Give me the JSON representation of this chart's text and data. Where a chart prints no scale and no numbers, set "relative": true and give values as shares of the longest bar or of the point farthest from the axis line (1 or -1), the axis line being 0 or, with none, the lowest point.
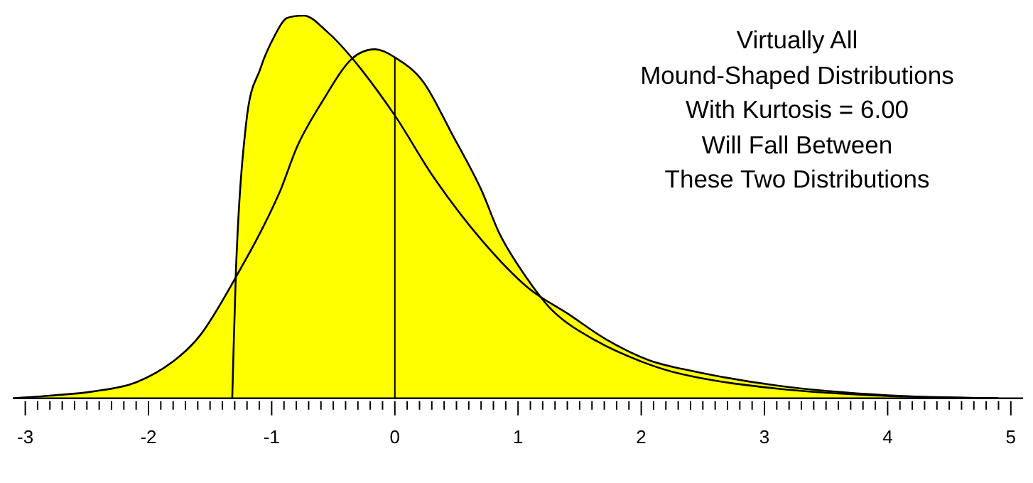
{
  "chart_data": {
    "type": "area",
    "relative": true,
    "annotations": [
      "Virtually  All\nMound-Shaped Distributions\nWith Kurtosis = 6.00\nWill Fall Between\nThese Two Distributions"
    ],
    "xlim": [
      -3.1,
      5.1
    ],
    "xticks": [
      -3,
      {
        "value": -2.9,
        "label": null
      },
      {
        "value": -2.8,
        "label": null
      },
      {
        "value": -2.7,
        "label": null
      },
      {
        "value": -2.6,
        "label": null
      },
      {
        "value": -2.5,
        "label": null
      },
      {
        "value": -2.4,
        "label": null
      },
      {
        "value": -2.3,
        "label": null
      },
      {
        "value": -2.2,
        "label": null
      },
      {
        "value": -2.1,
        "label": null
      },
      -2,
      {
        "value": -1.9,
        "label": null
      },
      {
        "value": -1.8,
        "label": null
      },
      {
        "value": -1.7,
        "label": null
      },
      {
        "value": -1.6,
        "label": null
      },
      {
        "value": -1.5,
        "label": null
      },
      {
        "value": -1.4,
        "label": null
      },
      {
        "value": -1.3,
        "label": null
      },
      {
        "value": -1.2,
        "label": null
      },
      {
        "value": -1.1,
        "label": null
      },
      -1,
      {
        "value": -0.9,
        "label": null
      },
      {
        "value": -0.8,
        "label": null
      },
      {
        "value": -0.7,
        "label": null
      },
      {
        "value": -0.6,
        "label": null
      },
      {
        "value": -0.5,
        "label": null
      },
      {
        "value": -0.4,
        "label": null
      },
      {
        "value": -0.3,
        "label": null
      },
      {
        "value": -0.2,
        "label": null
      },
      {
        "value": -0.1,
        "label": null
      },
      0,
      {
        "value": 0.1,
        "label": null
      },
      {
        "value": 0.2,
        "label": null
      },
      {
        "value": 0.3,
        "label": null
      },
      {
        "value": 0.4,
        "label": null
      },
      {
        "value": 0.5,
        "label": null
      },
      {
        "value": 0.6,
        "label": null
      },
      {
        "value": 0.7,
        "label": null
      },
      {
        "value": 0.8,
        "label": null
      },
      {
        "value": 0.9,
        "label": null
      },
      1,
      {
        "value": 1.1,
        "label": null
      },
      {
        "value": 1.2,
        "label": null
      },
      {
        "value": 1.3,
        "label": null
      },
      {
        "value": 1.4,
        "label": null
      },
      {
        "value": 1.5,
        "label": null
      },
      {
        "value": 1.6,
        "label": null
      },
      {
        "value": 1.7,
        "label": null
      },
      {
        "value": 1.8,
        "label": null
      },
      {
        "value": 1.9,
        "label": null
      },
      2,
      {
        "value": 2.1,
        "label": null
      },
      {
        "value": 2.2,
        "label": null
      },
      {
        "value": 2.3,
        "label": null
      },
      {
        "value": 2.4,
        "label": null
      },
      {
        "value": 2.5,
        "label": null
      },
      {
        "value": 2.6,
        "label": null
      },
      {
        "value": 2.7,
        "label": null
      },
      {
        "value": 2.8,
        "label": null
      },
      {
        "value": 2.9,
        "label": null
      },
      3,
      {
        "value": 3.1,
        "label": null
      },
      {
        "value": 3.2,
        "label": null
      },
      {
        "value": 3.3,
        "label": null
      },
      {
        "value": 3.4,
        "label": null
      },
      {
        "value": 3.5,
        "label": null
      },
      {
        "value": 3.6,
        "label": null
      },
      {
        "value": 3.7,
        "label": null
      },
      {
        "value": 3.8,
        "label": null
      },
      {
        "value": 3.9,
        "label": null
      },
      4,
      {
        "value": 4.1,
        "label": null
      },
      {
        "value": 4.2,
        "label": null
      },
      {
        "value": 4.3,
        "label": null
      },
      {
        "value": 4.4,
        "label": null
      },
      {
        "value": 4.5,
        "label": null
      },
      {
        "value": 4.6,
        "label": null
      },
      {
        "value": 4.7,
        "label": null
      },
      {
        "value": 4.8,
        "label": null
      },
      {
        "value": 4.9,
        "label": null
      },
      5
    ],
    "ref_lines": [
      {
        "axis": "x",
        "value": 0,
        "color": "#000000"
      }
    ],
    "series": [
      {
        "color": "#ffff00",
        "x": [
          -3.1,
          -2.8,
          -2.45,
          -2.1,
          -1.79,
          -1.58,
          -1.32,
          -0.94,
          -0.79,
          -0.59,
          -0.35,
          -0.16,
          0,
          0.23,
          0.47,
          0.7,
          0.85,
          1.08,
          1.28,
          1.63,
          2.01,
          2.33,
          3.11,
          4.0,
          4.9
        ],
        "values": [
          0,
          0.007,
          0.018,
          0.042,
          0.099,
          0.165,
          0.3,
          0.535,
          0.66,
          0.775,
          0.887,
          0.912,
          0.891,
          0.827,
          0.687,
          0.546,
          0.43,
          0.31,
          0.229,
          0.151,
          0.095,
          0.063,
          0.025,
          0.006,
          0
        ]
      },
      {
        "color": "#ffff00",
        "x": [
          -1.32,
          -1.29,
          -1.21,
          -1.09,
          -0.97,
          -0.88,
          -0.74,
          -0.55,
          -0.35,
          0,
          0.31,
          0.7,
          1.08,
          1.4,
          1.71,
          2.06,
          2.33,
          3.11,
          4.0,
          4.9
        ],
        "values": [
          0,
          0.335,
          0.711,
          0.863,
          0.951,
          0.993,
          1,
          0.958,
          0.89,
          0.739,
          0.58,
          0.415,
          0.289,
          0.222,
          0.155,
          0.1,
          0.077,
          0.033,
          0.008,
          0
        ]
      }
    ]
  }
}
